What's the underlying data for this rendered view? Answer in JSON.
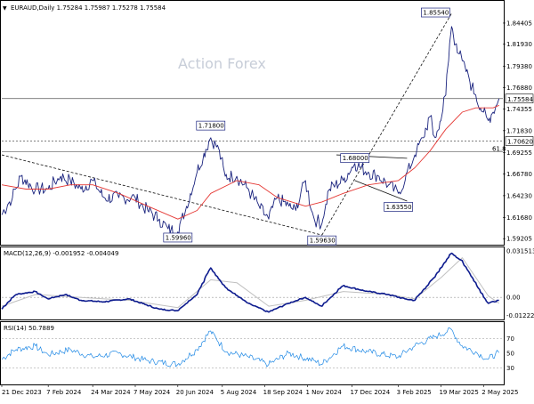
{
  "header": {
    "symbol_line": "EURAUD,Daily  1.75284 1.75987 1.75278 1.75584",
    "toggle_glyph": "▼"
  },
  "watermark": "Action Forex",
  "colors": {
    "price": "#1a237e",
    "ma": "#e53935",
    "macd": "#0d1b8e",
    "signal": "#c0c0c0",
    "rsi": "#1e88e5",
    "grid": "#c8c8c8",
    "box_border": "#1a237e"
  },
  "chart_data": [
    {
      "type": "line",
      "panel": "price",
      "series": [
        {
          "kind": "price",
          "points": [
            [
              "2023-12-21",
              1.62
            ],
            [
              "2024-01-01",
              1.64
            ],
            [
              "2024-01-10",
              1.665
            ],
            [
              "2024-01-25",
              1.65
            ],
            [
              "2024-02-07",
              1.65
            ],
            [
              "2024-02-20",
              1.665
            ],
            [
              "2024-03-01",
              1.66
            ],
            [
              "2024-03-12",
              1.65
            ],
            [
              "2024-03-24",
              1.66
            ],
            [
              "2024-04-05",
              1.64
            ],
            [
              "2024-04-20",
              1.64
            ],
            [
              "2024-05-07",
              1.64
            ],
            [
              "2024-05-20",
              1.625
            ],
            [
              "2024-06-01",
              1.615
            ],
            [
              "2024-06-10",
              1.6035
            ],
            [
              "2024-06-20",
              1.6
            ],
            [
              "2024-06-28",
              1.625
            ],
            [
              "2024-07-10",
              1.67
            ],
            [
              "2024-07-24",
              1.71
            ],
            [
              "2024-08-02",
              1.695
            ],
            [
              "2024-08-08",
              1.665
            ],
            [
              "2024-08-20",
              1.665
            ],
            [
              "2024-09-01",
              1.65
            ],
            [
              "2024-09-12",
              1.63
            ],
            [
              "2024-09-22",
              1.615
            ],
            [
              "2024-10-01",
              1.64
            ],
            [
              "2024-10-13",
              1.63
            ],
            [
              "2024-10-20",
              1.625
            ],
            [
              "2024-10-30",
              1.66
            ],
            [
              "2024-11-08",
              1.615
            ],
            [
              "2024-11-16",
              1.61
            ],
            [
              "2024-11-24",
              1.65
            ],
            [
              "2024-12-08",
              1.66
            ],
            [
              "2024-12-20",
              1.68
            ],
            [
              "2025-01-03",
              1.67
            ],
            [
              "2025-01-14",
              1.665
            ],
            [
              "2025-01-24",
              1.655
            ],
            [
              "2025-02-03",
              1.645
            ],
            [
              "2025-02-10",
              1.66
            ],
            [
              "2025-02-20",
              1.69
            ],
            [
              "2025-03-01",
              1.71
            ],
            [
              "2025-03-08",
              1.735
            ],
            [
              "2025-03-13",
              1.71
            ],
            [
              "2025-03-17",
              1.72
            ],
            [
              "2025-03-24",
              1.76
            ],
            [
              "2025-03-30",
              1.84
            ],
            [
              "2025-04-04",
              1.82
            ],
            [
              "2025-04-10",
              1.8
            ],
            [
              "2025-04-17",
              1.78
            ],
            [
              "2025-04-24",
              1.76
            ],
            [
              "2025-05-02",
              1.74
            ],
            [
              "2025-05-07",
              1.73
            ],
            [
              "2025-05-12",
              1.74
            ],
            [
              "2025-05-18",
              1.7558
            ]
          ]
        },
        {
          "kind": "moving_average",
          "points": [
            [
              "2023-12-21",
              1.655
            ],
            [
              "2024-01-15",
              1.65
            ],
            [
              "2024-02-07",
              1.65
            ],
            [
              "2024-03-01",
              1.655
            ],
            [
              "2024-03-24",
              1.655
            ],
            [
              "2024-04-20",
              1.645
            ],
            [
              "2024-05-20",
              1.63
            ],
            [
              "2024-06-20",
              1.615
            ],
            [
              "2024-07-10",
              1.625
            ],
            [
              "2024-07-24",
              1.645
            ],
            [
              "2024-08-20",
              1.66
            ],
            [
              "2024-09-12",
              1.655
            ],
            [
              "2024-10-01",
              1.64
            ],
            [
              "2024-10-30",
              1.63
            ],
            [
              "2024-11-16",
              1.635
            ],
            [
              "2024-12-08",
              1.645
            ],
            [
              "2025-01-03",
              1.655
            ],
            [
              "2025-02-03",
              1.66
            ],
            [
              "2025-02-20",
              1.675
            ],
            [
              "2025-03-08",
              1.695
            ],
            [
              "2025-03-24",
              1.72
            ],
            [
              "2025-04-10",
              1.74
            ],
            [
              "2025-04-24",
              1.745
            ],
            [
              "2025-05-12",
              1.745
            ],
            [
              "2025-05-18",
              1.748
            ]
          ]
        }
      ],
      "annotations": [
        {
          "text": "1.85540",
          "date": "2025-03-30",
          "price": 1.8554
        },
        {
          "text": "1.71800",
          "date": "2024-07-24",
          "price": 1.718
        },
        {
          "text": "1.68000",
          "date": "2024-12-20",
          "price": 1.68
        },
        {
          "text": "1.63550",
          "date": "2025-02-03",
          "price": 1.6355
        },
        {
          "text": "1.59960",
          "date": "2024-06-20",
          "price": 1.5996
        },
        {
          "text": "1.59630",
          "date": "2024-11-16",
          "price": 1.5963
        }
      ],
      "levels": [
        {
          "price": 1.7062,
          "label": "1.70620",
          "boxed": true
        },
        {
          "price": 1.75584,
          "label": "1.75584",
          "boxed": true
        },
        {
          "price": 1.6936,
          "label": "61.8"
        }
      ],
      "trendlines": [
        {
          "from": [
            "2023-12-21",
            1.69
          ],
          "to": [
            "2024-11-16",
            1.5963
          ],
          "dashed": true
        },
        {
          "from": [
            "2024-11-16",
            1.5963
          ],
          "to": [
            "2025-03-30",
            1.8554
          ],
          "dashed": true
        },
        {
          "from": [
            "2024-12-01",
            1.69
          ],
          "to": [
            "2025-02-12",
            1.686
          ],
          "dashed": false
        },
        {
          "from": [
            "2024-12-20",
            1.66
          ],
          "to": [
            "2025-02-12",
            1.636
          ],
          "dashed": false
        }
      ],
      "y_ticks": [
        "1.84405",
        "1.81930",
        "1.79380",
        "1.76880",
        "1.74355",
        "1.71830",
        "1.69255",
        "1.66780",
        "1.64230",
        "1.61680",
        "1.59205"
      ],
      "ylim": [
        1.585,
        1.87
      ],
      "y_scale": "linear"
    },
    {
      "type": "line",
      "panel": "macd",
      "title": "MACD(12,26,9) -0.001952 -0.004049",
      "series": [
        {
          "kind": "macd",
          "points": [
            [
              "2023-12-21",
              -0.008
            ],
            [
              "2024-01-05",
              0.002
            ],
            [
              "2024-01-25",
              0.004
            ],
            [
              "2024-02-07",
              -0.001
            ],
            [
              "2024-02-25",
              0.002
            ],
            [
              "2024-03-12",
              -0.002
            ],
            [
              "2024-04-05",
              -0.003
            ],
            [
              "2024-05-01",
              -0.001
            ],
            [
              "2024-06-01",
              -0.008
            ],
            [
              "2024-06-20",
              -0.009
            ],
            [
              "2024-07-10",
              0.002
            ],
            [
              "2024-07-24",
              0.02
            ],
            [
              "2024-08-10",
              0.006
            ],
            [
              "2024-09-01",
              -0.004
            ],
            [
              "2024-09-22",
              -0.01
            ],
            [
              "2024-10-13",
              -0.004
            ],
            [
              "2024-10-30",
              0.0
            ],
            [
              "2024-11-16",
              -0.006
            ],
            [
              "2024-12-08",
              0.008
            ],
            [
              "2025-01-03",
              0.004
            ],
            [
              "2025-01-24",
              0.002
            ],
            [
              "2025-02-10",
              -0.001
            ],
            [
              "2025-02-20",
              -0.002
            ],
            [
              "2025-03-13",
              0.014
            ],
            [
              "2025-03-30",
              0.03
            ],
            [
              "2025-04-10",
              0.025
            ],
            [
              "2025-04-24",
              0.01
            ],
            [
              "2025-05-07",
              -0.004
            ],
            [
              "2025-05-18",
              -0.002
            ]
          ]
        },
        {
          "kind": "signal",
          "points": [
            [
              "2023-12-21",
              -0.006
            ],
            [
              "2024-01-25",
              0.002
            ],
            [
              "2024-03-12",
              0.0
            ],
            [
              "2024-05-01",
              -0.002
            ],
            [
              "2024-06-20",
              -0.007
            ],
            [
              "2024-07-24",
              0.012
            ],
            [
              "2024-08-20",
              0.01
            ],
            [
              "2024-09-22",
              -0.006
            ],
            [
              "2024-10-30",
              -0.002
            ],
            [
              "2024-12-08",
              0.004
            ],
            [
              "2025-01-24",
              0.002
            ],
            [
              "2025-02-20",
              -0.001
            ],
            [
              "2025-03-20",
              0.014
            ],
            [
              "2025-04-10",
              0.027
            ],
            [
              "2025-05-07",
              0.001
            ],
            [
              "2025-05-18",
              -0.004
            ]
          ]
        }
      ],
      "y_ticks": [
        "0.031513",
        "0.00",
        "-0.012223"
      ],
      "ylim": [
        -0.015,
        0.034
      ],
      "y_scale": "linear"
    },
    {
      "type": "line",
      "panel": "rsi",
      "title": "RSI(14) 50.7889",
      "series": [
        {
          "kind": "rsi",
          "points": [
            [
              "2023-12-21",
              42
            ],
            [
              "2024-01-05",
              55
            ],
            [
              "2024-01-25",
              60
            ],
            [
              "2024-02-07",
              48
            ],
            [
              "2024-03-01",
              55
            ],
            [
              "2024-03-24",
              45
            ],
            [
              "2024-04-20",
              50
            ],
            [
              "2024-05-20",
              40
            ],
            [
              "2024-06-20",
              35
            ],
            [
              "2024-07-10",
              55
            ],
            [
              "2024-07-24",
              80
            ],
            [
              "2024-08-10",
              52
            ],
            [
              "2024-09-01",
              45
            ],
            [
              "2024-09-22",
              35
            ],
            [
              "2024-10-13",
              50
            ],
            [
              "2024-11-08",
              40
            ],
            [
              "2024-11-16",
              35
            ],
            [
              "2024-12-08",
              60
            ],
            [
              "2025-01-03",
              52
            ],
            [
              "2025-02-03",
              45
            ],
            [
              "2025-02-20",
              60
            ],
            [
              "2025-03-13",
              72
            ],
            [
              "2025-03-30",
              82
            ],
            [
              "2025-04-10",
              60
            ],
            [
              "2025-04-24",
              52
            ],
            [
              "2025-05-07",
              42
            ],
            [
              "2025-05-18",
              50.8
            ]
          ]
        }
      ],
      "y_ticks": [
        "70",
        "50",
        "30"
      ],
      "ylim": [
        8,
        92
      ],
      "y_scale": "linear"
    }
  ],
  "x_axis": {
    "labels": [
      {
        "text": "21 Dec 2023",
        "date": "2023-12-21"
      },
      {
        "text": "7 Feb 2024",
        "date": "2024-02-07"
      },
      {
        "text": "24 Mar 2024",
        "date": "2024-03-24"
      },
      {
        "text": "7 May 2024",
        "date": "2024-05-07"
      },
      {
        "text": "20 Jun 2024",
        "date": "2024-06-20"
      },
      {
        "text": "5 Aug 2024",
        "date": "2024-08-05"
      },
      {
        "text": "18 Sep 2024",
        "date": "2024-09-18"
      },
      {
        "text": "1 Nov 2024",
        "date": "2024-11-01"
      },
      {
        "text": "17 Dec 2024",
        "date": "2024-12-17"
      },
      {
        "text": "3 Feb 2025",
        "date": "2025-02-03"
      },
      {
        "text": "19 Mar 2025",
        "date": "2025-03-19"
      },
      {
        "text": "2 May 2025",
        "date": "2025-05-02"
      }
    ],
    "range": [
      "2023-12-21",
      "2025-05-22"
    ]
  }
}
